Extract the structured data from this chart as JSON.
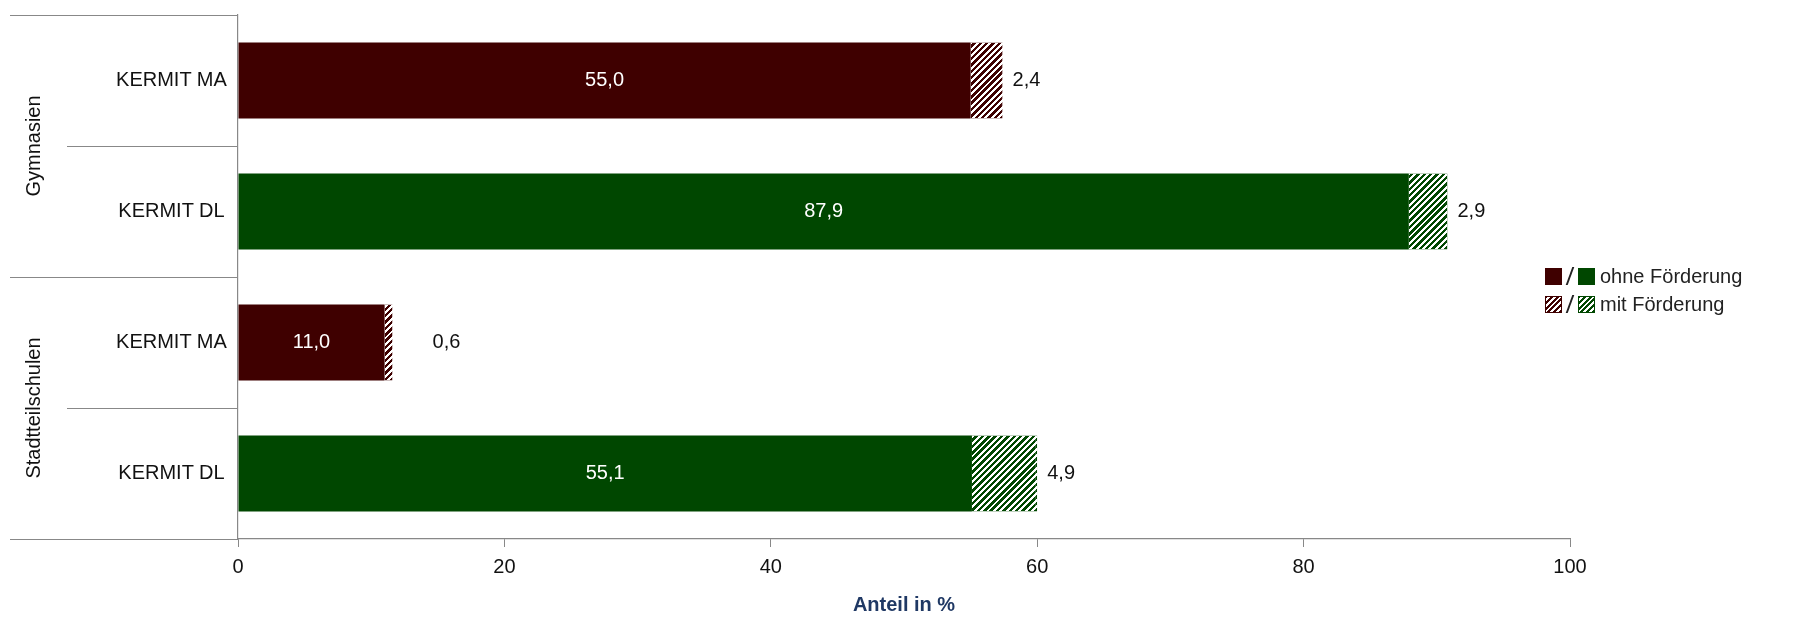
{
  "chart_data": {
    "type": "bar",
    "orientation": "horizontal",
    "stacked": true,
    "xlabel": "Anteil in %",
    "categories": [
      "KERMIT MA",
      "KERMIT DL",
      "KERMIT MA",
      "KERMIT DL"
    ],
    "series": [
      {
        "name": "ohne Förderung",
        "colors": [
          "#3f0000",
          "#004700",
          "#3f0000",
          "#004700"
        ],
        "values": [
          55.0,
          87.9,
          11.0,
          55.1
        ]
      },
      {
        "name": "mit Förderung",
        "colors": [
          "#3f0000",
          "#004700",
          "#3f0000",
          "#004700"
        ],
        "values": [
          2.4,
          2.9,
          0.6,
          4.9
        ]
      }
    ],
    "value_labels": [
      [
        "55,0",
        "87,9",
        "11,0",
        "55,1"
      ],
      [
        "2,4",
        "2,9",
        "0,6",
        "4,9"
      ]
    ],
    "annotations": [
      "Gymnasien",
      "Stadtteilschulen"
    ],
    "xlim": [
      0,
      100
    ],
    "xticks": [
      0,
      20,
      40,
      60,
      80,
      100
    ],
    "grid": false,
    "legend": "right"
  }
}
